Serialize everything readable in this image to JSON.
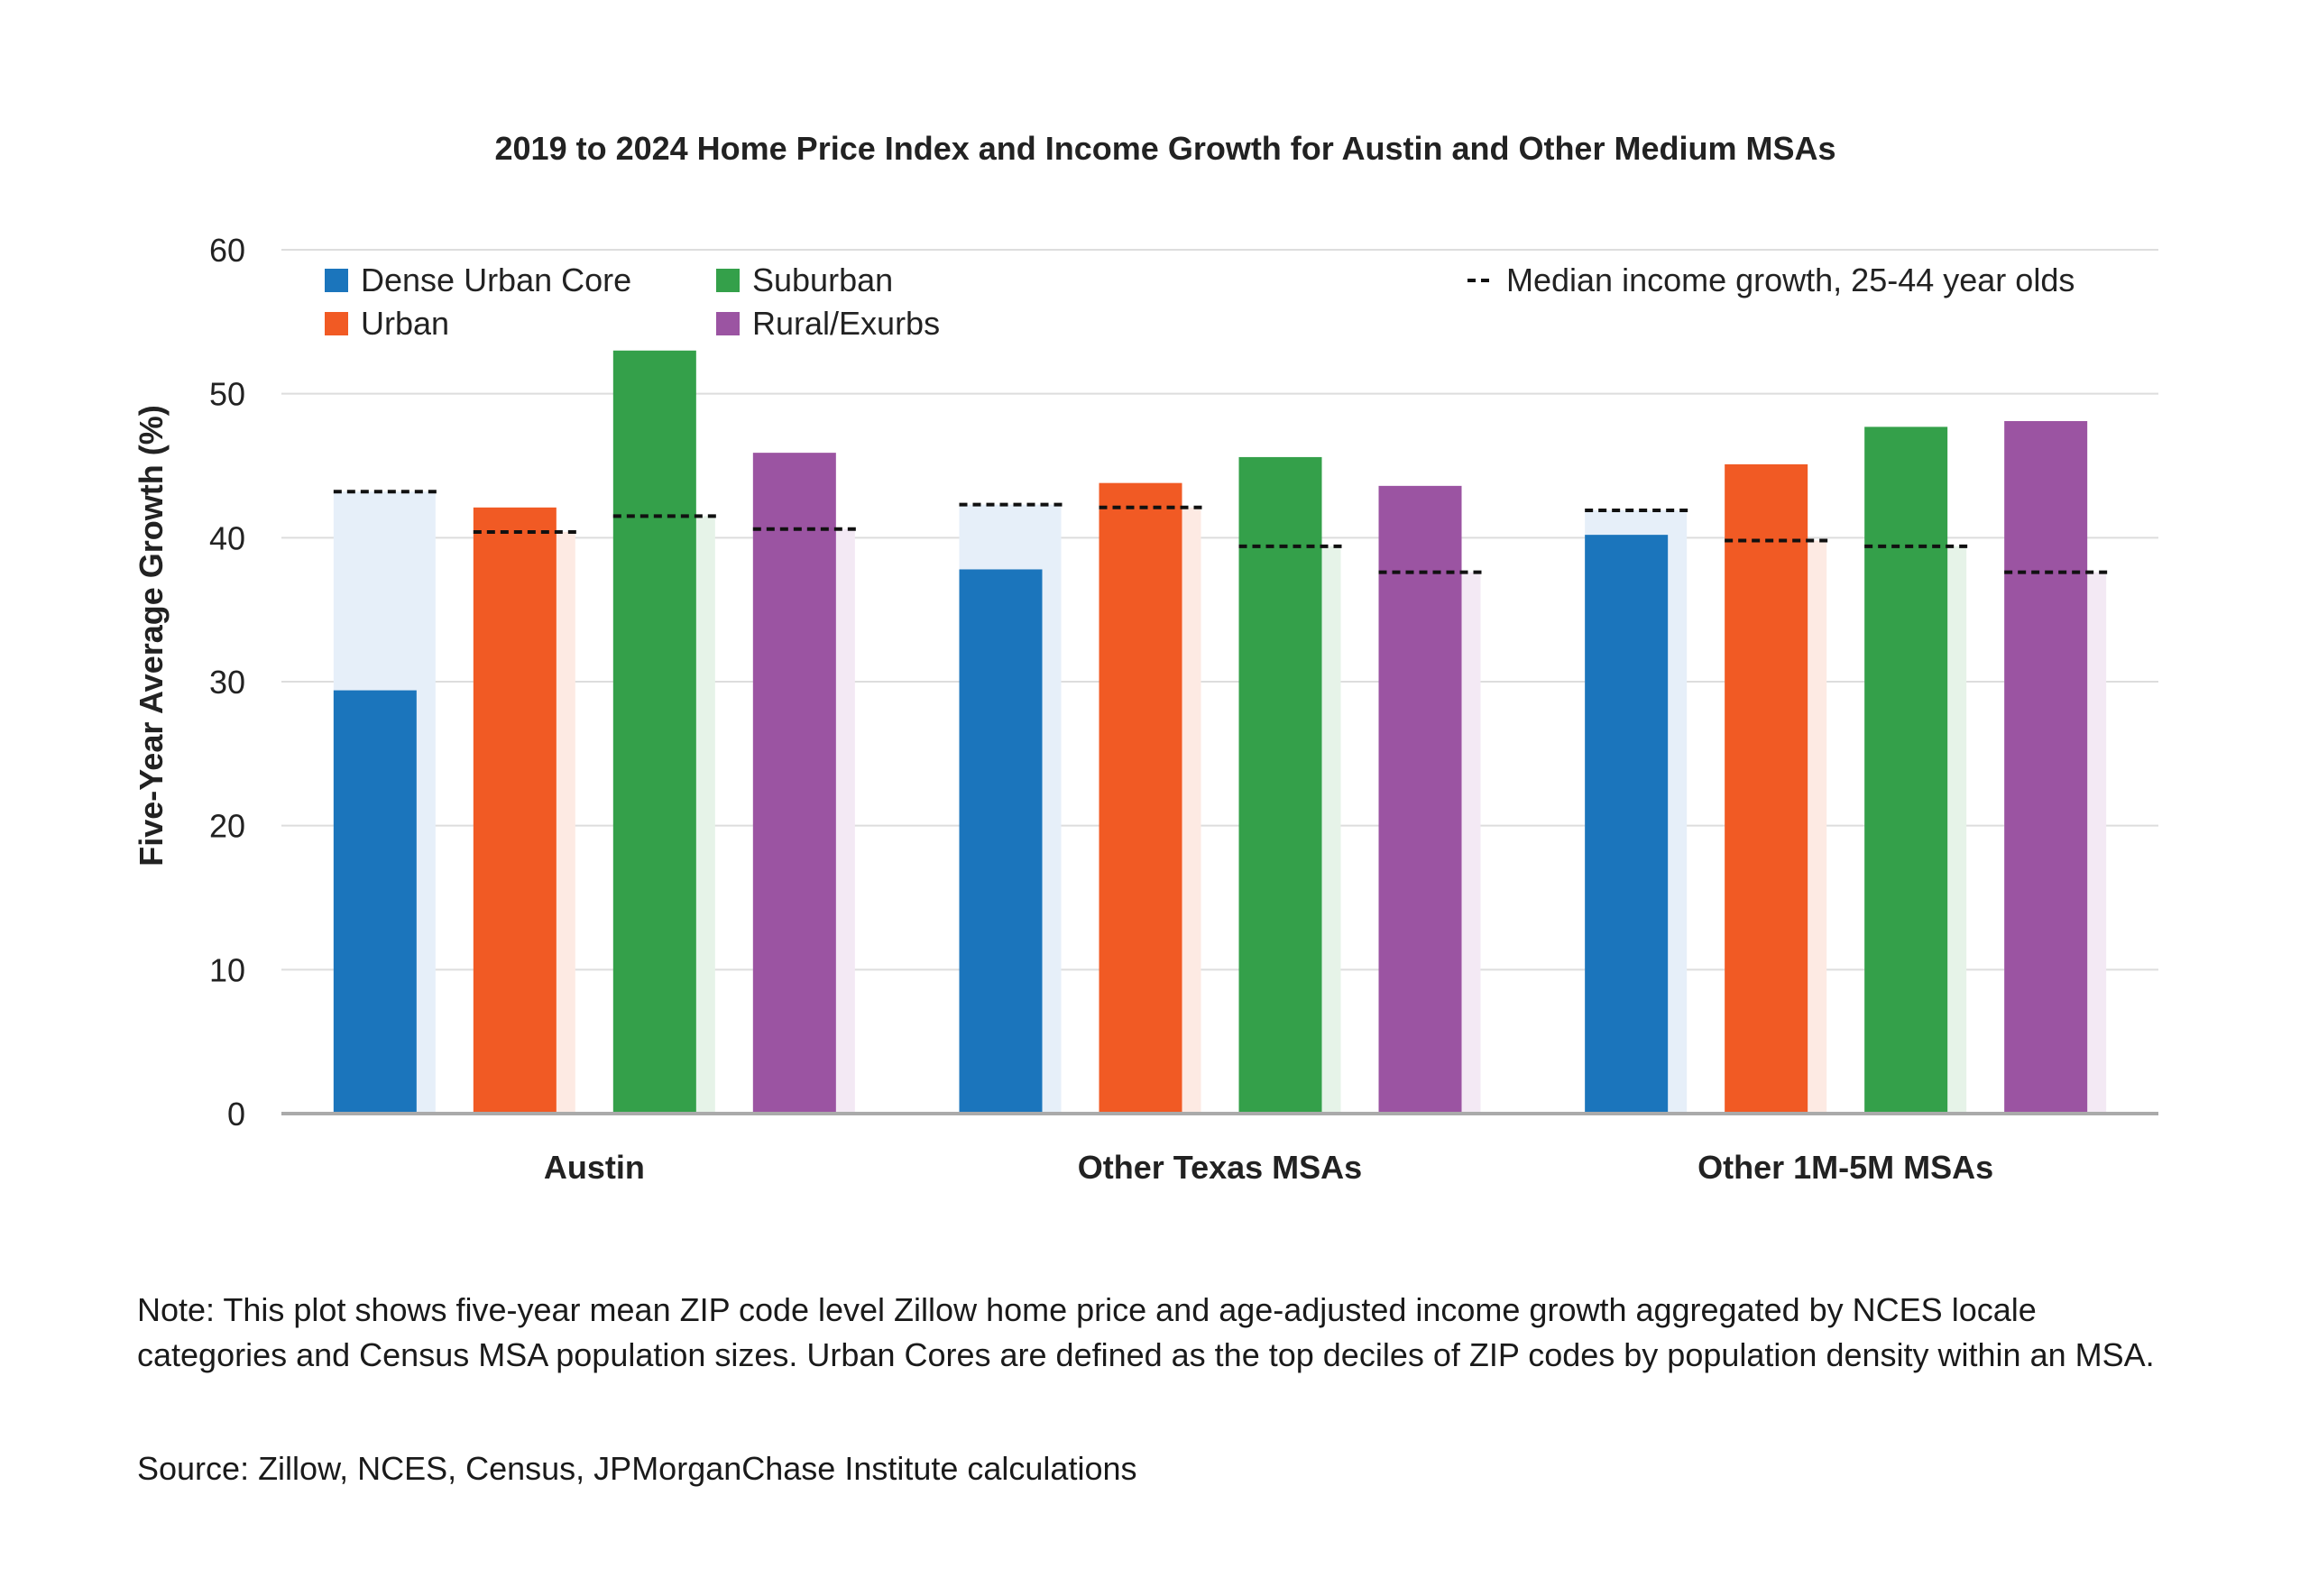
{
  "chart_data": {
    "type": "bar",
    "title": "2019 to 2024 Home Price Index and Income Growth for Austin and Other Medium MSAs",
    "ylabel": "Five-Year Average Growth (%)",
    "xlabel": "",
    "ylim": [
      0,
      60
    ],
    "yticks": [
      0,
      10,
      20,
      30,
      40,
      50,
      60
    ],
    "grid": true,
    "legend_placement": "top",
    "categories": [
      "Austin",
      "Other Texas MSAs",
      "Other 1M-5M MSAs"
    ],
    "series": [
      {
        "name": "Dense Urban Core",
        "color": "#1b75bc",
        "shade": "#e6eff9",
        "values": [
          29.4,
          37.8,
          40.2
        ],
        "income": [
          43.2,
          42.3,
          41.9
        ]
      },
      {
        "name": "Urban",
        "color": "#f15a24",
        "shade": "#fdeae3",
        "values": [
          42.1,
          43.8,
          45.1
        ],
        "income": [
          40.4,
          42.1,
          39.8
        ]
      },
      {
        "name": "Suburban",
        "color": "#34a04a",
        "shade": "#e6f3e8",
        "values": [
          53.0,
          45.6,
          47.7
        ],
        "income": [
          41.5,
          39.4,
          39.4
        ]
      },
      {
        "name": "Rural/Exurbs",
        "color": "#9b54a2",
        "shade": "#f3e9f4",
        "values": [
          45.9,
          43.6,
          48.1
        ],
        "income": [
          40.6,
          37.6,
          37.6
        ]
      }
    ],
    "income_legend": "Median income growth, 25-44 year olds"
  },
  "note": "Note: This plot shows five-year mean ZIP code level Zillow home price and age-adjusted income growth aggregated by NCES locale categories and Census MSA population sizes. Urban Cores are defined as the top deciles of ZIP codes by population density within an MSA.",
  "source": "Source: Zillow, NCES, Census, JPMorganChase Institute calculations"
}
